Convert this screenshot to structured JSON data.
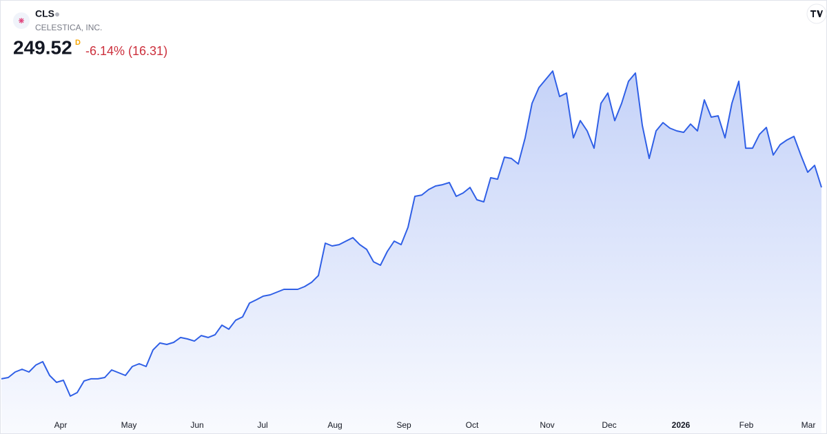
{
  "header": {
    "symbol": "CLS",
    "company": "CELESTICA, INC.",
    "price": "249.52",
    "interval": "D",
    "change": "-6.14% (16.31)"
  },
  "chart_data": {
    "type": "area",
    "color": "#2f5fe6",
    "values": [
      75.8,
      77.0,
      82.0,
      84.5,
      82.0,
      88.3,
      91.4,
      78.9,
      72.6,
      74.5,
      60.1,
      63.3,
      73.9,
      75.8,
      75.8,
      77.0,
      83.9,
      81.4,
      78.9,
      87.0,
      89.5,
      87.0,
      102.0,
      108.3,
      107.0,
      108.9,
      113.3,
      112.0,
      110.1,
      115.1,
      113.3,
      115.8,
      124.5,
      120.8,
      129.0,
      132.0,
      144.5,
      147.6,
      150.8,
      152.0,
      154.5,
      157.0,
      157.0,
      157.0,
      159.5,
      163.3,
      169.5,
      198.9,
      196.4,
      197.6,
      200.8,
      203.9,
      197.6,
      193.3,
      182.0,
      178.9,
      191.4,
      200.8,
      197.6,
      213.3,
      241.4,
      242.6,
      247.6,
      250.8,
      252.0,
      253.9,
      241.4,
      244.5,
      249.5,
      238.3,
      236.4,
      258.3,
      257.0,
      277.0,
      275.8,
      270.8,
      294.5,
      325.8,
      340.1,
      347.6,
      355.1,
      332.0,
      335.1,
      294.5,
      310.1,
      300.8,
      285.1,
      325.8,
      335.1,
      310.1,
      325.8,
      345.8,
      353.3,
      305.8,
      275.8,
      300.8,
      308.3,
      303.3,
      300.8,
      299.5,
      307.0,
      300.8,
      328.9,
      313.3,
      314.5,
      294.5,
      325.8,
      345.8,
      285.1,
      285.1,
      297.6,
      303.9,
      278.9,
      288.3,
      292.6,
      295.8,
      278.9,
      263.3,
      269.5,
      249.52
    ],
    "ylim": [
      44.5,
      363.3
    ],
    "xlim": [
      0,
      119
    ],
    "xticks": [
      {
        "value": 8.6,
        "label": "Apr"
      },
      {
        "value": 18.5,
        "label": "May"
      },
      {
        "value": 28.4,
        "label": "Jun"
      },
      {
        "value": 37.9,
        "label": "Jul"
      },
      {
        "value": 48.4,
        "label": "Aug"
      },
      {
        "value": 58.4,
        "label": "Sep"
      },
      {
        "value": 68.3,
        "label": "Oct"
      },
      {
        "value": 79.2,
        "label": "Nov"
      },
      {
        "value": 88.2,
        "label": "Dec"
      },
      {
        "value": 98.6,
        "label": "2026",
        "bold": true
      },
      {
        "value": 108.1,
        "label": "Feb"
      },
      {
        "value": 117.1,
        "label": "Mar"
      }
    ]
  }
}
